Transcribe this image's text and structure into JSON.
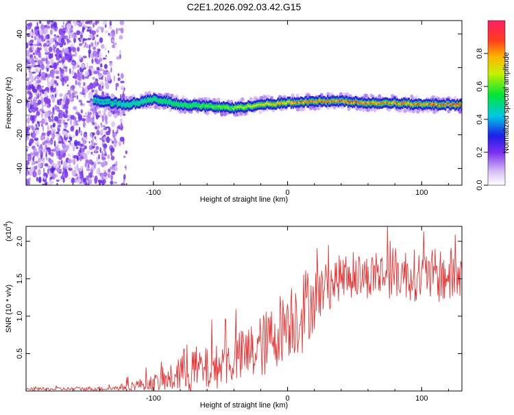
{
  "chart_data": [
    {
      "type": "heatmap",
      "title": "C2E1.2026.092.03.42.G15",
      "xlabel": "Height of straight line (km)",
      "ylabel": "Frequency (Hz)",
      "xlim": [
        -195,
        130
      ],
      "ylim": [
        -50,
        48
      ],
      "xticks": [
        -100,
        0,
        100
      ],
      "xticklabels": [
        "-100",
        "0",
        "100"
      ],
      "yticks": [
        -40,
        -20,
        0,
        20,
        40
      ],
      "yticklabels": [
        "-40",
        "-20",
        "0",
        "20",
        "40"
      ],
      "colorbar": {
        "label": "Normalized spectral amplitude",
        "range": [
          0,
          1
        ],
        "ticks": [
          0,
          0.2,
          0.4,
          0.6,
          0.8
        ],
        "ticklabels": [
          "0.0",
          "0.2",
          "0.4",
          "0.6",
          "0.8"
        ]
      },
      "ridge": {
        "description_points": [
          {
            "x": -140,
            "freq": 0,
            "amp": 0.4
          },
          {
            "x": -120,
            "freq": -2,
            "amp": 0.45
          },
          {
            "x": -100,
            "freq": 1,
            "amp": 0.5
          },
          {
            "x": -80,
            "freq": -2,
            "amp": 0.55
          },
          {
            "x": -60,
            "freq": -3,
            "amp": 0.6
          },
          {
            "x": -40,
            "freq": -4,
            "amp": 0.65
          },
          {
            "x": -20,
            "freq": -2,
            "amp": 0.75
          },
          {
            "x": 0,
            "freq": -1,
            "amp": 0.85
          },
          {
            "x": 20,
            "freq": 0,
            "amp": 0.9
          },
          {
            "x": 40,
            "freq": 0,
            "amp": 0.9
          },
          {
            "x": 60,
            "freq": -1,
            "amp": 0.85
          },
          {
            "x": 80,
            "freq": -1,
            "amp": 0.85
          },
          {
            "x": 100,
            "freq": -2,
            "amp": 0.85
          },
          {
            "x": 130,
            "freq": -2,
            "amp": 0.9
          }
        ]
      }
    },
    {
      "type": "line",
      "xlabel": "Height of straight line (km)",
      "ylabel": "SNR (10 * v/v)",
      "yexponent_label": "(x10",
      "yexponent_power": "4",
      "yexponent_close": ")",
      "xlim": [
        -195,
        130
      ],
      "ylim": [
        0,
        2.2
      ],
      "xticks": [
        -100,
        0,
        100
      ],
      "xticklabels": [
        "-100",
        "0",
        "100"
      ],
      "yticks": [
        0.5,
        1.0,
        1.5,
        2.0
      ],
      "yticklabels": [
        "0.5",
        "1.0",
        "1.5",
        "2.0"
      ],
      "color": "#e83232",
      "envelope": [
        {
          "x": -195,
          "base": 0.02,
          "amp": 0.02
        },
        {
          "x": -130,
          "base": 0.03,
          "amp": 0.03
        },
        {
          "x": -110,
          "base": 0.08,
          "amp": 0.08
        },
        {
          "x": -90,
          "base": 0.12,
          "amp": 0.15
        },
        {
          "x": -75,
          "base": 0.25,
          "amp": 0.35
        },
        {
          "x": -60,
          "base": 0.25,
          "amp": 0.3
        },
        {
          "x": -45,
          "base": 0.35,
          "amp": 0.3
        },
        {
          "x": -30,
          "base": 0.45,
          "amp": 0.4
        },
        {
          "x": -15,
          "base": 0.6,
          "amp": 0.45
        },
        {
          "x": 0,
          "base": 0.9,
          "amp": 0.5
        },
        {
          "x": 10,
          "base": 1.0,
          "amp": 0.6
        },
        {
          "x": 25,
          "base": 1.3,
          "amp": 0.35
        },
        {
          "x": 40,
          "base": 1.5,
          "amp": 0.3
        },
        {
          "x": 60,
          "base": 1.5,
          "amp": 0.3
        },
        {
          "x": 80,
          "base": 1.55,
          "amp": 0.35
        },
        {
          "x": 100,
          "base": 1.5,
          "amp": 0.35
        },
        {
          "x": 130,
          "base": 1.5,
          "amp": 0.4
        }
      ]
    }
  ]
}
